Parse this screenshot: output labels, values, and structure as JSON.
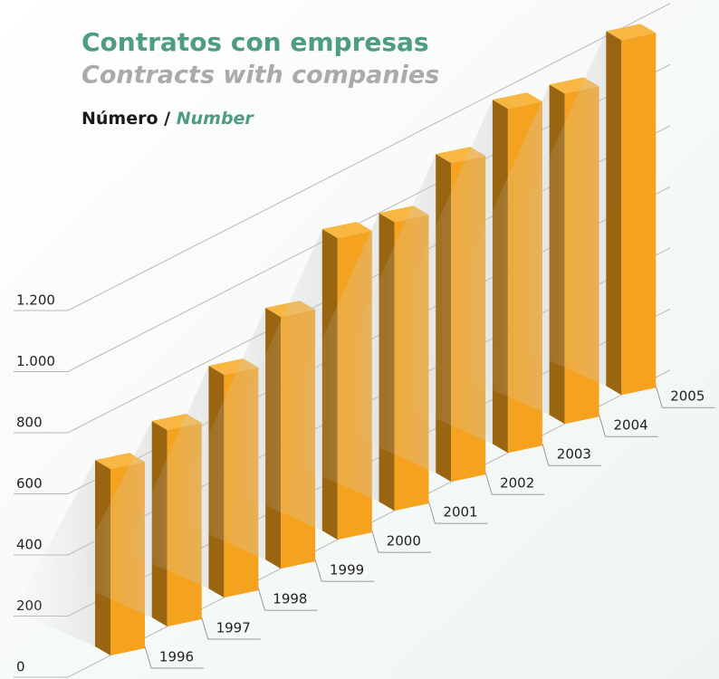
{
  "chart_data": {
    "type": "bar3d",
    "title": "Contratos con empresas",
    "subtitle": "Contracts with companies",
    "axis_label": "Número /",
    "axis_label_en": "Number",
    "categories": [
      "1996",
      "1997",
      "1998",
      "1999",
      "2000",
      "2001",
      "2002",
      "2003",
      "2004",
      "2005"
    ],
    "values": [
      610,
      643,
      729,
      824,
      987,
      945,
      1043,
      1126,
      1081,
      1161
    ],
    "color": "#f5a31e",
    "ylim": [
      0,
      1200
    ],
    "yticks": [
      0,
      200,
      400,
      600,
      800,
      {
        "value": 1000,
        "label": "1.000"
      },
      {
        "value": 1200,
        "label": "1.200"
      }
    ],
    "grid": true
  }
}
